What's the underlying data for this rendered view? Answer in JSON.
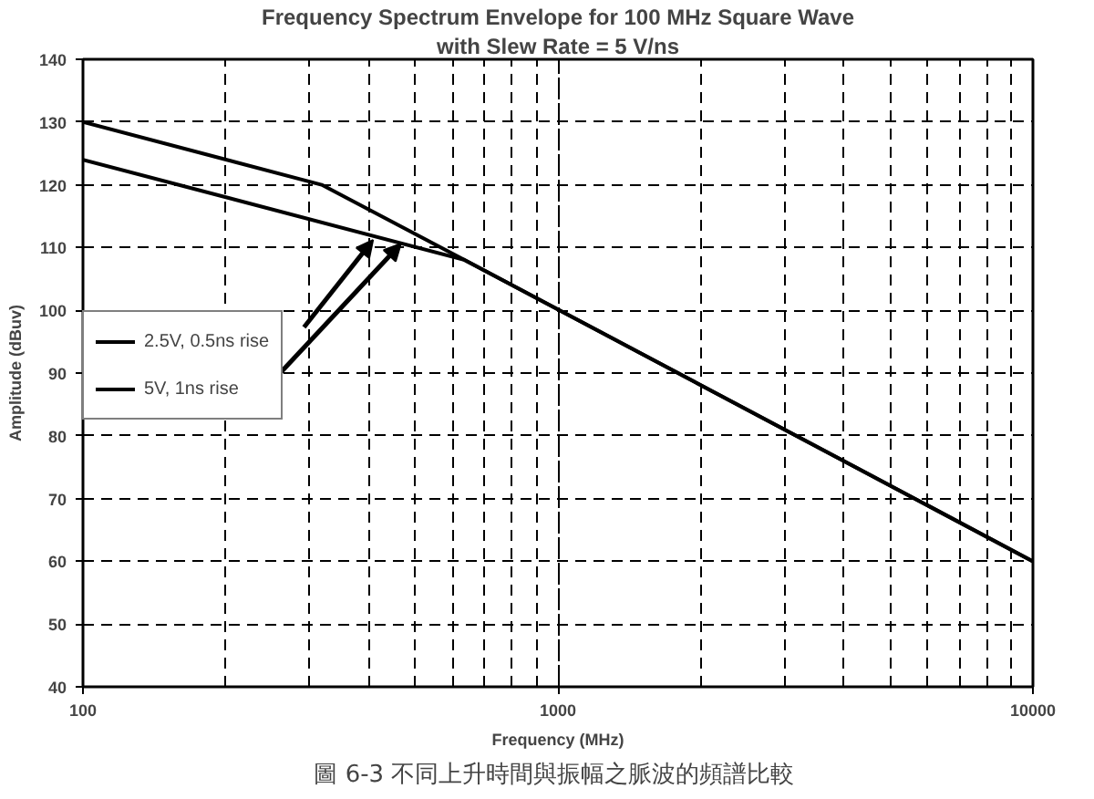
{
  "chart_data": {
    "type": "line",
    "title": "Frequency Spectrum Envelope for 100 MHz Square Wave",
    "subtitle": "with Slew Rate = 5 V/ns",
    "xlabel": "Frequency (MHz)",
    "ylabel": "Amplitude (dBuv)",
    "annotations": [
      "圖 6-3  不同上升時間與振幅之脈波的頻譜比較"
    ],
    "log": "x",
    "xlim": [
      100,
      10000
    ],
    "xticks": [
      100,
      1000,
      10000
    ],
    "ylim": [
      40,
      140
    ],
    "yticks": [
      40,
      50,
      60,
      70,
      80,
      90,
      100,
      110,
      120,
      130,
      140
    ],
    "grid": true,
    "legend": "left",
    "series": [
      {
        "name": "2.5V, 0.5ns rise",
        "color": "#000000",
        "x": [
          100,
          637,
          10000
        ],
        "values": [
          124,
          108,
          60
        ]
      },
      {
        "name": "5V, 1ns rise",
        "color": "#000000",
        "x": [
          100,
          318,
          637,
          10000
        ],
        "values": [
          130,
          120,
          108,
          60
        ]
      }
    ]
  }
}
